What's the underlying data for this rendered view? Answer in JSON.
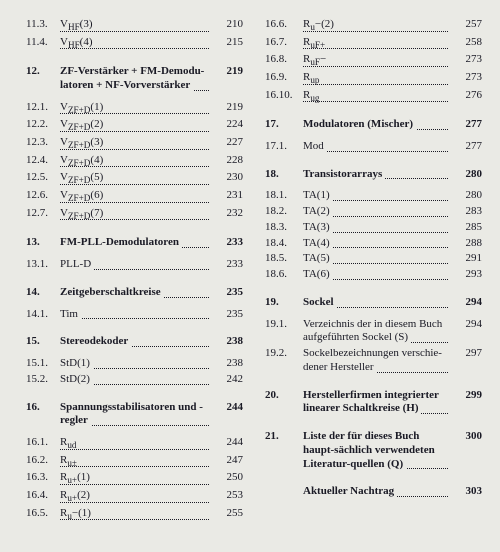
{
  "left": [
    {
      "n": "11.3.",
      "t": "V_HF(3)",
      "p": "210"
    },
    {
      "n": "11.4.",
      "t": "V_HF(4)",
      "p": "215"
    },
    {
      "gap": "m"
    },
    {
      "n": "12.",
      "t": "ZF-Verstärker + FM-Demodu-latoren + NF-Vorverstärker",
      "p": "219",
      "bold": true,
      "multi": true
    },
    {
      "gap": "s"
    },
    {
      "n": "12.1.",
      "t": "V_ZF+D(1)",
      "p": "219"
    },
    {
      "n": "12.2.",
      "t": "V_ZF+D(2)",
      "p": "224"
    },
    {
      "n": "12.3.",
      "t": "V_ZF+D(3)",
      "p": "227"
    },
    {
      "n": "12.4.",
      "t": "V_ZF+D(4)",
      "p": "228"
    },
    {
      "n": "12.5.",
      "t": "V_ZF+D(5)",
      "p": "230"
    },
    {
      "n": "12.6.",
      "t": "V_ZF+D(6)",
      "p": "231"
    },
    {
      "n": "12.7.",
      "t": "V_ZF+D(7)",
      "p": "232"
    },
    {
      "gap": "m"
    },
    {
      "n": "13.",
      "t": "FM-PLL-Demodulatoren",
      "p": "233",
      "bold": true
    },
    {
      "gap": "s"
    },
    {
      "n": "13.1.",
      "t": "PLL-D",
      "p": "233"
    },
    {
      "gap": "m"
    },
    {
      "n": "14.",
      "t": "Zeitgeberschaltkreise",
      "p": "235",
      "bold": true
    },
    {
      "gap": "s"
    },
    {
      "n": "14.1.",
      "t": "Tim",
      "p": "235"
    },
    {
      "gap": "m"
    },
    {
      "n": "15.",
      "t": "Stereodekoder",
      "p": "238",
      "bold": true
    },
    {
      "gap": "s"
    },
    {
      "n": "15.1.",
      "t": "StD(1)",
      "p": "238"
    },
    {
      "n": "15.2.",
      "t": "StD(2)",
      "p": "242"
    },
    {
      "gap": "m"
    },
    {
      "n": "16.",
      "t": "Spannungsstabilisatoren und -regler",
      "p": "244",
      "bold": true,
      "multi": true
    },
    {
      "gap": "s"
    },
    {
      "n": "16.1.",
      "t": "R_ud",
      "p": "244"
    },
    {
      "n": "16.2.",
      "t": "R_u±",
      "p": "247"
    },
    {
      "n": "16.3.",
      "t": "R_u+(1)",
      "p": "250"
    },
    {
      "n": "16.4.",
      "t": "R_u+(2)",
      "p": "253"
    },
    {
      "n": "16.5.",
      "t": "R_u−(1)",
      "p": "255"
    }
  ],
  "right": [
    {
      "n": "16.6.",
      "t": "R_u−(2)",
      "p": "257"
    },
    {
      "n": "16.7.",
      "t": "R_uF+",
      "p": "258"
    },
    {
      "n": "16.8.",
      "t": "R_uF−",
      "p": "273"
    },
    {
      "n": "16.9.",
      "t": "R_up",
      "p": "273"
    },
    {
      "n": "16.10.",
      "t": "R_ug",
      "p": "276"
    },
    {
      "gap": "m"
    },
    {
      "n": "17.",
      "t": "Modulatoren (Mischer)",
      "p": "277",
      "bold": true
    },
    {
      "gap": "s"
    },
    {
      "n": "17.1.",
      "t": "Mod",
      "p": "277"
    },
    {
      "gap": "m"
    },
    {
      "n": "18.",
      "t": "Transistorarrays",
      "p": "280",
      "bold": true
    },
    {
      "gap": "s"
    },
    {
      "n": "18.1.",
      "t": "TA(1)",
      "p": "280"
    },
    {
      "n": "18.2.",
      "t": "TA(2)",
      "p": "283"
    },
    {
      "n": "18.3.",
      "t": "TA(3)",
      "p": "285"
    },
    {
      "n": "18.4.",
      "t": "TA(4)",
      "p": "288"
    },
    {
      "n": "18.5.",
      "t": "TA(5)",
      "p": "291"
    },
    {
      "n": "18.6.",
      "t": "TA(6)",
      "p": "293"
    },
    {
      "gap": "m"
    },
    {
      "n": "19.",
      "t": "Sockel",
      "p": "294",
      "bold": true
    },
    {
      "gap": "s"
    },
    {
      "n": "19.1.",
      "t": "Verzeichnis der in diesem Buch aufgeführten Sockel (S)",
      "p": "294",
      "multi": true
    },
    {
      "n": "19.2.",
      "t": "Sockelbezeichnungen verschie-dener Hersteller",
      "p": "297",
      "multi": true
    },
    {
      "gap": "m"
    },
    {
      "n": "20.",
      "t": "Herstellerfirmen integrierter linearer Schaltkreise (H)",
      "p": "299",
      "bold": true,
      "multi": true
    },
    {
      "gap": "m"
    },
    {
      "n": "21.",
      "t": "Liste der für dieses Buch haupt-sächlich verwendeten Literatur-quellen (Q)",
      "p": "300",
      "bold": true,
      "multi": true
    },
    {
      "gap": "m"
    },
    {
      "n": "",
      "t": "Aktueller Nachtrag",
      "p": "303",
      "bold": true
    }
  ]
}
